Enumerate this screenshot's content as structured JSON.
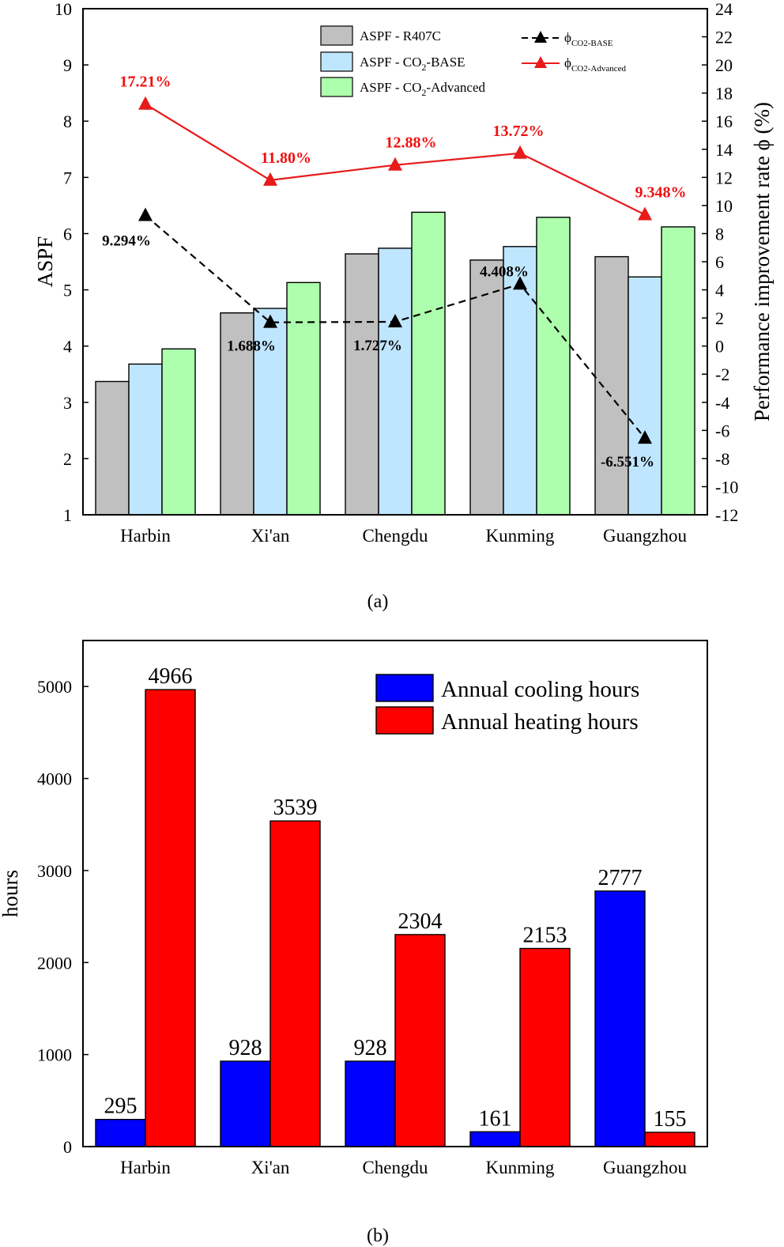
{
  "figure": {
    "panel_a_label": "(a)",
    "panel_b_label": "(b)"
  },
  "colors": {
    "r407c": "#c0c0c0",
    "co2_base": "#bfe6ff",
    "co2_advanced": "#adffad",
    "phi_base": "#000000",
    "phi_advanced": "#e81a1a",
    "cooling": "#0000ff",
    "heating": "#ff0000"
  },
  "chart_data": [
    {
      "type": "bar",
      "panel": "(a)",
      "categories": [
        "Harbin",
        "Xi'an",
        "Chengdu",
        "Kunming",
        "Guangzhou"
      ],
      "ylabel": "ASPF",
      "ylim": [
        1,
        10
      ],
      "yticks": [
        "1",
        "2",
        "3",
        "4",
        "5",
        "6",
        "7",
        "8",
        "9",
        "10"
      ],
      "y2label": "Performance improvement rate ϕ (%)",
      "y2lim": [
        -12,
        24
      ],
      "y2ticks": [
        "-12",
        "-10",
        "-8",
        "-6",
        "-4",
        "-2",
        "0",
        "2",
        "4",
        "6",
        "8",
        "10",
        "12",
        "14",
        "16",
        "18",
        "20",
        "22",
        "24"
      ],
      "legend_position": "top",
      "series": [
        {
          "name": "ASPF - R407C",
          "name_parts": [
            "ASPF - R407C",
            "",
            ""
          ],
          "type": "bar",
          "axis": "left",
          "color": "#c0c0c0",
          "values": [
            3.37,
            4.59,
            5.64,
            5.53,
            5.59
          ]
        },
        {
          "name": "ASPF - CO2-BASE",
          "name_parts": [
            "ASPF - CO",
            "2",
            "-BASE"
          ],
          "type": "bar",
          "axis": "left",
          "color": "#bfe6ff",
          "values": [
            3.68,
            4.67,
            5.74,
            5.77,
            5.23
          ]
        },
        {
          "name": "ASPF - CO2-Advanced",
          "name_parts": [
            "ASPF - CO",
            "2",
            "-Advanced"
          ],
          "type": "bar",
          "axis": "left",
          "color": "#adffad",
          "values": [
            3.95,
            5.13,
            6.38,
            6.29,
            6.12
          ]
        },
        {
          "name": "ϕCO2-BASE",
          "name_parts": [
            "ϕ",
            "CO2-BASE",
            ""
          ],
          "type": "line",
          "axis": "right",
          "color": "#000000",
          "dash": true,
          "values": [
            9.294,
            1.688,
            1.727,
            4.408,
            -6.551
          ],
          "labels": [
            "9.294%",
            "1.688%",
            "1.727%",
            "4.408%",
            "-6.551%"
          ]
        },
        {
          "name": "ϕCO2-Advanced",
          "name_parts": [
            "ϕ",
            "CO2-Advanced",
            ""
          ],
          "type": "line",
          "axis": "right",
          "color": "#e81a1a",
          "dash": false,
          "values": [
            17.21,
            11.8,
            12.88,
            13.72,
            9.348
          ],
          "labels": [
            "17.21%",
            "11.80%",
            "12.88%",
            "13.72%",
            "9.348%"
          ]
        }
      ]
    },
    {
      "type": "bar",
      "panel": "(b)",
      "categories": [
        "Harbin",
        "Xi'an",
        "Chengdu",
        "Kunming",
        "Guangzhou"
      ],
      "ylabel": "hours",
      "ylim": [
        0,
        5500
      ],
      "yticks": [
        "0",
        "1000",
        "2000",
        "3000",
        "4000",
        "5000"
      ],
      "legend_position": "top-right",
      "series": [
        {
          "name": "Annual cooling hours",
          "color": "#0000ff",
          "values": [
            295,
            928,
            928,
            161,
            2777
          ],
          "labels": [
            "295",
            "928",
            "928",
            "161",
            "2777"
          ]
        },
        {
          "name": "Annual heating hours",
          "color": "#ff0000",
          "values": [
            4966,
            3539,
            2304,
            2153,
            155
          ],
          "labels": [
            "4966",
            "3539",
            "2304",
            "2153",
            "155"
          ]
        }
      ]
    }
  ]
}
